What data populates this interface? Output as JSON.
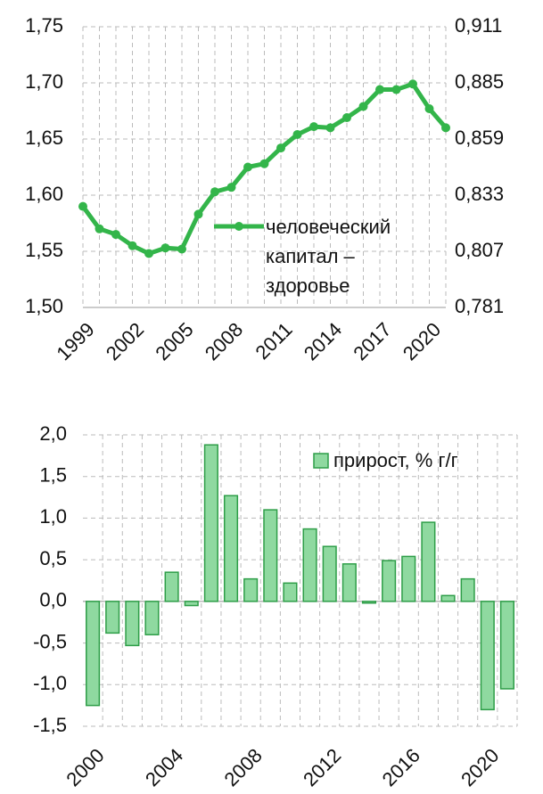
{
  "chart_data": [
    {
      "type": "line",
      "x": [
        1999,
        2000,
        2001,
        2002,
        2003,
        2004,
        2005,
        2006,
        2007,
        2008,
        2009,
        2010,
        2011,
        2012,
        2013,
        2014,
        2015,
        2016,
        2017,
        2018,
        2019,
        2020,
        2021
      ],
      "series": [
        {
          "name": "человеческий капитал – здоровье",
          "color": "#33b54a",
          "values": [
            1.59,
            1.57,
            1.565,
            1.555,
            1.548,
            1.553,
            1.552,
            1.583,
            1.603,
            1.607,
            1.625,
            1.628,
            1.642,
            1.654,
            1.661,
            1.66,
            1.669,
            1.679,
            1.694,
            1.694,
            1.699,
            1.677,
            1.66
          ]
        }
      ],
      "xlim": [
        1999,
        2021
      ],
      "xticks": [
        1999,
        2002,
        2005,
        2008,
        2011,
        2014,
        2017,
        2020
      ],
      "ylim": [
        1.5,
        1.75
      ],
      "yticks": [
        {
          "value": 1.5,
          "label": "1,50"
        },
        {
          "value": 1.55,
          "label": "1,55"
        },
        {
          "value": 1.6,
          "label": "1,60"
        },
        {
          "value": 1.65,
          "label": "1,65"
        },
        {
          "value": 1.7,
          "label": "1,70"
        },
        {
          "value": 1.75,
          "label": "1,75"
        }
      ],
      "y2lim": [
        0.781,
        0.911
      ],
      "y2ticks": [
        {
          "value": 0.781,
          "label": "0,781"
        },
        {
          "value": 0.807,
          "label": "0,807"
        },
        {
          "value": 0.833,
          "label": "0,833"
        },
        {
          "value": 0.859,
          "label": "0,859"
        },
        {
          "value": 0.885,
          "label": "0,885"
        },
        {
          "value": 0.911,
          "label": "0,911"
        }
      ],
      "grid": true
    },
    {
      "type": "bar",
      "categories": [
        "2000",
        null,
        null,
        null,
        "2004",
        null,
        null,
        null,
        "2008",
        null,
        null,
        null,
        "2012",
        null,
        null,
        null,
        "2016",
        null,
        null,
        null,
        "2020",
        null
      ],
      "series": [
        {
          "name": "прирост, % г/г",
          "color": "#8fd9a0",
          "values": [
            -1.25,
            -0.38,
            -0.53,
            -0.4,
            0.35,
            -0.05,
            1.88,
            1.27,
            0.27,
            1.1,
            0.22,
            0.87,
            0.66,
            0.45,
            -0.02,
            0.49,
            0.54,
            0.95,
            0.07,
            0.27,
            -1.3,
            -1.05
          ]
        }
      ],
      "ylim": [
        -1.5,
        2.0
      ],
      "yticks": [
        {
          "value": -1.5,
          "label": "-1,5"
        },
        {
          "value": -1.0,
          "label": "-1,0"
        },
        {
          "value": -0.5,
          "label": "-0,5"
        },
        {
          "value": 0.0,
          "label": "0,0"
        },
        {
          "value": 0.5,
          "label": "0,5"
        },
        {
          "value": 1.0,
          "label": "1,0"
        },
        {
          "value": 1.5,
          "label": "1,5"
        },
        {
          "value": 2.0,
          "label": "2,0"
        }
      ],
      "grid": true
    }
  ]
}
